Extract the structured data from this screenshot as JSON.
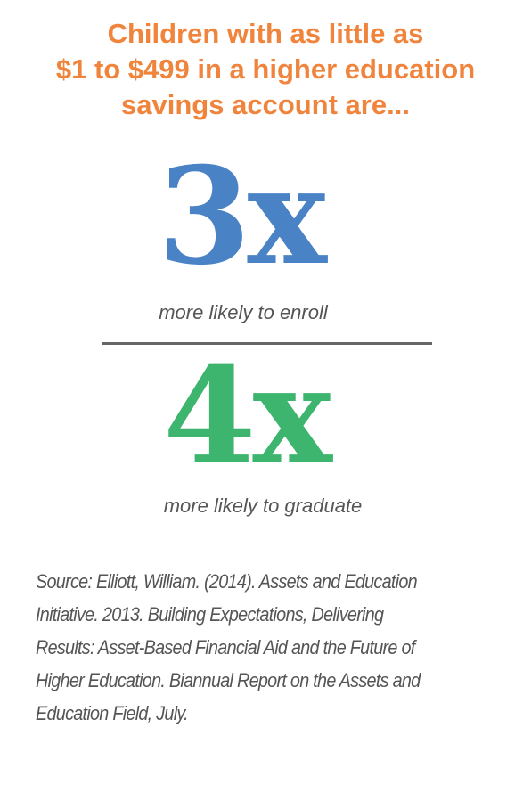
{
  "headline": {
    "lines": [
      "Children with as little as",
      "$1 to $499 in a higher education",
      "savings account are..."
    ],
    "color": "#f0843c"
  },
  "stats": [
    {
      "value": "3x",
      "caption": "more likely to enroll",
      "color": "#4a82c6"
    },
    {
      "value": "4x",
      "caption": "more likely to graduate",
      "color": "#3db56e"
    }
  ],
  "source": {
    "lines": [
      "Source: Elliott, William. (2014). Assets and Education",
      "Initiative. 2013. Building Expectations, Delivering",
      "Results: Asset-Based Financial Aid and the Future of",
      "Higher Education. Biannual Report on the Assets and",
      "Education Field, July."
    ]
  }
}
